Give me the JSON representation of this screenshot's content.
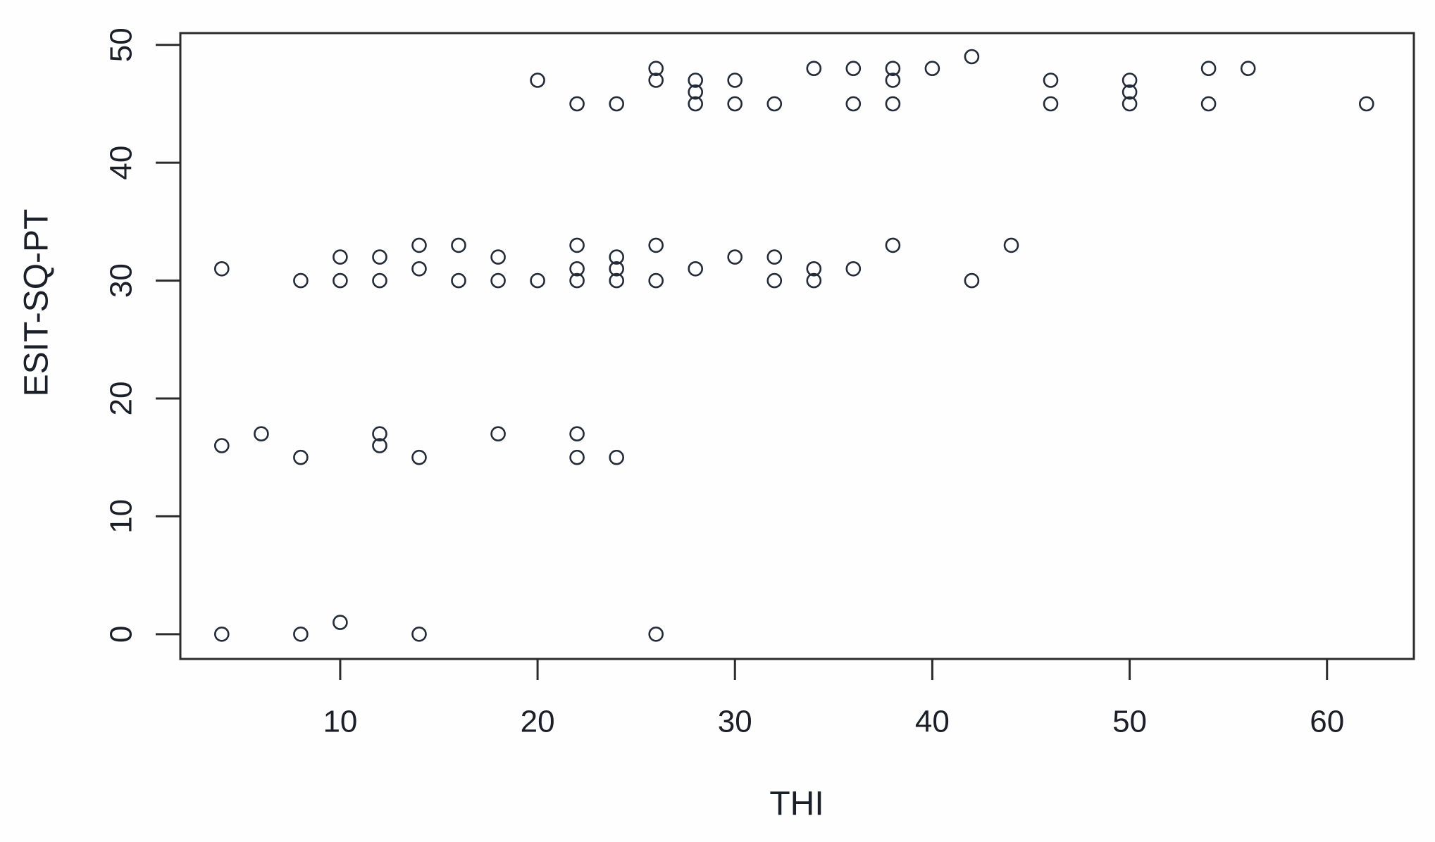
{
  "chart_data": {
    "type": "scatter",
    "title": "",
    "xlabel": "THI",
    "ylabel": "ESIT-SQ-PT",
    "xlim": [
      1.9,
      64.4
    ],
    "ylim": [
      -2.1,
      51.0
    ],
    "x_ticks": [
      10,
      20,
      30,
      40,
      50,
      60
    ],
    "y_ticks": [
      0,
      10,
      20,
      30,
      40,
      50
    ],
    "grid": false,
    "legend": null,
    "marker": "open-circle",
    "points": [
      [
        20,
        47
      ],
      [
        22,
        45
      ],
      [
        24,
        45
      ],
      [
        26,
        48
      ],
      [
        26,
        47
      ],
      [
        28,
        47
      ],
      [
        28,
        46
      ],
      [
        28,
        45
      ],
      [
        30,
        47
      ],
      [
        30,
        45
      ],
      [
        32,
        45
      ],
      [
        34,
        48
      ],
      [
        36,
        48
      ],
      [
        36,
        45
      ],
      [
        38,
        48
      ],
      [
        38,
        47
      ],
      [
        38,
        45
      ],
      [
        40,
        48
      ],
      [
        42,
        49
      ],
      [
        46,
        47
      ],
      [
        46,
        45
      ],
      [
        50,
        47
      ],
      [
        50,
        46
      ],
      [
        50,
        45
      ],
      [
        54,
        48
      ],
      [
        54,
        45
      ],
      [
        56,
        48
      ],
      [
        62,
        45
      ],
      [
        4,
        31
      ],
      [
        8,
        30
      ],
      [
        10,
        32
      ],
      [
        10,
        30
      ],
      [
        12,
        32
      ],
      [
        12,
        30
      ],
      [
        14,
        33
      ],
      [
        14,
        31
      ],
      [
        16,
        33
      ],
      [
        16,
        30
      ],
      [
        18,
        32
      ],
      [
        18,
        30
      ],
      [
        20,
        30
      ],
      [
        22,
        33
      ],
      [
        22,
        31
      ],
      [
        22,
        30
      ],
      [
        24,
        32
      ],
      [
        24,
        31
      ],
      [
        24,
        30
      ],
      [
        26,
        33
      ],
      [
        26,
        30
      ],
      [
        28,
        31
      ],
      [
        30,
        32
      ],
      [
        32,
        32
      ],
      [
        32,
        30
      ],
      [
        34,
        31
      ],
      [
        34,
        30
      ],
      [
        36,
        31
      ],
      [
        38,
        33
      ],
      [
        42,
        30
      ],
      [
        44,
        33
      ],
      [
        4,
        16
      ],
      [
        6,
        17
      ],
      [
        8,
        15
      ],
      [
        12,
        17
      ],
      [
        12,
        16
      ],
      [
        14,
        15
      ],
      [
        18,
        17
      ],
      [
        22,
        17
      ],
      [
        22,
        15
      ],
      [
        24,
        15
      ],
      [
        4,
        0
      ],
      [
        8,
        0
      ],
      [
        10,
        1
      ],
      [
        14,
        0
      ],
      [
        26,
        0
      ]
    ]
  },
  "style": {
    "point_color": "#232b38",
    "axis_color": "#2b2b2b",
    "text_color": "#1a1f28",
    "background": "#fefefe"
  }
}
